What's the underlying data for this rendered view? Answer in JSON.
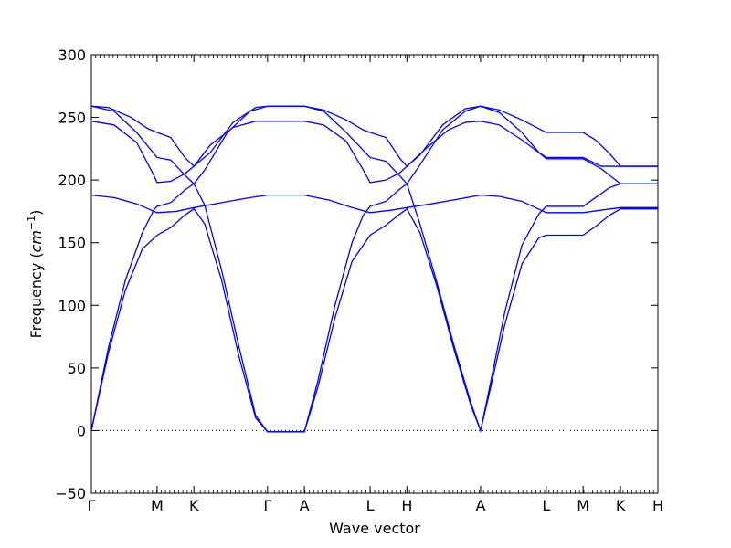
{
  "chart_data": {
    "type": "line",
    "title": "",
    "xlabel": "Wave vector",
    "ylabel_main": "Frequency (",
    "ylabel_unit": "cm",
    "ylabel_exp": "−1",
    "ylabel_close": ")",
    "ylim": [
      -50,
      300
    ],
    "yticks": [
      -50,
      0,
      50,
      100,
      150,
      200,
      250,
      300
    ],
    "ytick_labels": [
      "−50",
      "0",
      "50",
      "100",
      "150",
      "200",
      "250",
      "300"
    ],
    "xlim": [
      0,
      1
    ],
    "kpoints": [
      {
        "label": "Γ",
        "x": 0.0
      },
      {
        "label": "M",
        "x": 0.116
      },
      {
        "label": "K",
        "x": 0.181
      },
      {
        "label": "Γ",
        "x": 0.311
      },
      {
        "label": "A",
        "x": 0.376
      },
      {
        "label": "L",
        "x": 0.492
      },
      {
        "label": "H",
        "x": 0.557
      },
      {
        "label": "A",
        "x": 0.687
      },
      {
        "label": "L",
        "x": 0.803
      },
      {
        "label": "M",
        "x": 0.868
      },
      {
        "label": "K",
        "x": 0.934
      },
      {
        "label": "H",
        "x": 1.0
      }
    ],
    "zero_line": true,
    "line_color": "#0000ff",
    "series": [
      {
        "points": [
          [
            0.0,
            0
          ],
          [
            0.03,
            62
          ],
          [
            0.06,
            112
          ],
          [
            0.09,
            145
          ],
          [
            0.116,
            156
          ],
          [
            0.14,
            162
          ],
          [
            0.165,
            172
          ],
          [
            0.181,
            177
          ],
          [
            0.2,
            165
          ],
          [
            0.23,
            120
          ],
          [
            0.26,
            60
          ],
          [
            0.29,
            10
          ],
          [
            0.311,
            -1
          ],
          [
            0.376,
            -1
          ],
          [
            0.4,
            35
          ],
          [
            0.43,
            90
          ],
          [
            0.46,
            135
          ],
          [
            0.492,
            156
          ],
          [
            0.52,
            164
          ],
          [
            0.545,
            173
          ],
          [
            0.557,
            177
          ],
          [
            0.58,
            158
          ],
          [
            0.61,
            115
          ],
          [
            0.64,
            65
          ],
          [
            0.67,
            20
          ],
          [
            0.687,
            0
          ],
          [
            0.7,
            25
          ],
          [
            0.73,
            85
          ],
          [
            0.76,
            133
          ],
          [
            0.79,
            154
          ],
          [
            0.803,
            156
          ],
          [
            0.868,
            156
          ],
          [
            0.89,
            163
          ],
          [
            0.915,
            172
          ],
          [
            0.934,
            177
          ],
          [
            1.0,
            177
          ]
        ]
      },
      {
        "points": [
          [
            0.0,
            0
          ],
          [
            0.03,
            66
          ],
          [
            0.06,
            120
          ],
          [
            0.09,
            158
          ],
          [
            0.11,
            176
          ],
          [
            0.116,
            179
          ],
          [
            0.14,
            182
          ],
          [
            0.165,
            192
          ],
          [
            0.181,
            197
          ],
          [
            0.2,
            180
          ],
          [
            0.23,
            128
          ],
          [
            0.26,
            68
          ],
          [
            0.29,
            12
          ],
          [
            0.311,
            -1
          ],
          [
            0.376,
            -1
          ],
          [
            0.4,
            40
          ],
          [
            0.43,
            100
          ],
          [
            0.46,
            150
          ],
          [
            0.48,
            172
          ],
          [
            0.492,
            179
          ],
          [
            0.52,
            183
          ],
          [
            0.545,
            193
          ],
          [
            0.557,
            197
          ],
          [
            0.58,
            165
          ],
          [
            0.61,
            118
          ],
          [
            0.64,
            68
          ],
          [
            0.67,
            22
          ],
          [
            0.687,
            0
          ],
          [
            0.7,
            28
          ],
          [
            0.73,
            95
          ],
          [
            0.76,
            148
          ],
          [
            0.79,
            173
          ],
          [
            0.803,
            179
          ],
          [
            0.868,
            179
          ],
          [
            0.89,
            186
          ],
          [
            0.915,
            194
          ],
          [
            0.934,
            197
          ],
          [
            1.0,
            197
          ]
        ]
      },
      {
        "points": [
          [
            0.0,
            188
          ],
          [
            0.04,
            186
          ],
          [
            0.08,
            181
          ],
          [
            0.116,
            174
          ],
          [
            0.15,
            175
          ],
          [
            0.181,
            178
          ],
          [
            0.23,
            182
          ],
          [
            0.28,
            186
          ],
          [
            0.311,
            188
          ],
          [
            0.376,
            188
          ],
          [
            0.42,
            184
          ],
          [
            0.46,
            178
          ],
          [
            0.492,
            174
          ],
          [
            0.53,
            176
          ],
          [
            0.557,
            178
          ],
          [
            0.6,
            181
          ],
          [
            0.65,
            185
          ],
          [
            0.687,
            188
          ],
          [
            0.72,
            187
          ],
          [
            0.76,
            183
          ],
          [
            0.803,
            174
          ],
          [
            0.868,
            174
          ],
          [
            0.9,
            176
          ],
          [
            0.934,
            178
          ],
          [
            1.0,
            178
          ]
        ]
      },
      {
        "points": [
          [
            0.0,
            247
          ],
          [
            0.04,
            244
          ],
          [
            0.08,
            230
          ],
          [
            0.11,
            204
          ],
          [
            0.116,
            198
          ],
          [
            0.14,
            199
          ],
          [
            0.165,
            205
          ],
          [
            0.181,
            211
          ],
          [
            0.21,
            228
          ],
          [
            0.25,
            242
          ],
          [
            0.29,
            247
          ],
          [
            0.311,
            247
          ],
          [
            0.376,
            247
          ],
          [
            0.41,
            244
          ],
          [
            0.45,
            231
          ],
          [
            0.48,
            208
          ],
          [
            0.492,
            198
          ],
          [
            0.52,
            200
          ],
          [
            0.545,
            206
          ],
          [
            0.557,
            211
          ],
          [
            0.59,
            225
          ],
          [
            0.63,
            240
          ],
          [
            0.66,
            246
          ],
          [
            0.687,
            247
          ],
          [
            0.72,
            244
          ],
          [
            0.76,
            232
          ],
          [
            0.79,
            222
          ],
          [
            0.803,
            217
          ],
          [
            0.868,
            217
          ],
          [
            0.9,
            209
          ],
          [
            0.934,
            197
          ],
          [
            1.0,
            197
          ]
        ]
      },
      {
        "points": [
          [
            0.0,
            259
          ],
          [
            0.04,
            255
          ],
          [
            0.08,
            238
          ],
          [
            0.116,
            218
          ],
          [
            0.14,
            216
          ],
          [
            0.165,
            204
          ],
          [
            0.181,
            197
          ],
          [
            0.2,
            208
          ],
          [
            0.24,
            238
          ],
          [
            0.28,
            255
          ],
          [
            0.311,
            259
          ],
          [
            0.376,
            259
          ],
          [
            0.41,
            255
          ],
          [
            0.45,
            238
          ],
          [
            0.492,
            218
          ],
          [
            0.52,
            215
          ],
          [
            0.545,
            203
          ],
          [
            0.557,
            197
          ],
          [
            0.58,
            212
          ],
          [
            0.62,
            240
          ],
          [
            0.66,
            255
          ],
          [
            0.687,
            259
          ],
          [
            0.72,
            254
          ],
          [
            0.76,
            238
          ],
          [
            0.79,
            222
          ],
          [
            0.803,
            218
          ],
          [
            0.868,
            218
          ],
          [
            0.9,
            211
          ],
          [
            0.934,
            211
          ],
          [
            1.0,
            211
          ]
        ]
      },
      {
        "points": [
          [
            0.0,
            259
          ],
          [
            0.03,
            258
          ],
          [
            0.07,
            250
          ],
          [
            0.1,
            241
          ],
          [
            0.116,
            238
          ],
          [
            0.14,
            234
          ],
          [
            0.165,
            218
          ],
          [
            0.181,
            211
          ],
          [
            0.21,
            222
          ],
          [
            0.25,
            246
          ],
          [
            0.29,
            258
          ],
          [
            0.311,
            259
          ],
          [
            0.376,
            259
          ],
          [
            0.41,
            256
          ],
          [
            0.45,
            248
          ],
          [
            0.48,
            240
          ],
          [
            0.492,
            238
          ],
          [
            0.52,
            234
          ],
          [
            0.545,
            217
          ],
          [
            0.557,
            211
          ],
          [
            0.58,
            220
          ],
          [
            0.62,
            244
          ],
          [
            0.66,
            257
          ],
          [
            0.687,
            259
          ],
          [
            0.72,
            256
          ],
          [
            0.76,
            248
          ],
          [
            0.79,
            241
          ],
          [
            0.803,
            238
          ],
          [
            0.868,
            238
          ],
          [
            0.89,
            232
          ],
          [
            0.915,
            221
          ],
          [
            0.934,
            211
          ],
          [
            1.0,
            211
          ]
        ]
      }
    ]
  }
}
